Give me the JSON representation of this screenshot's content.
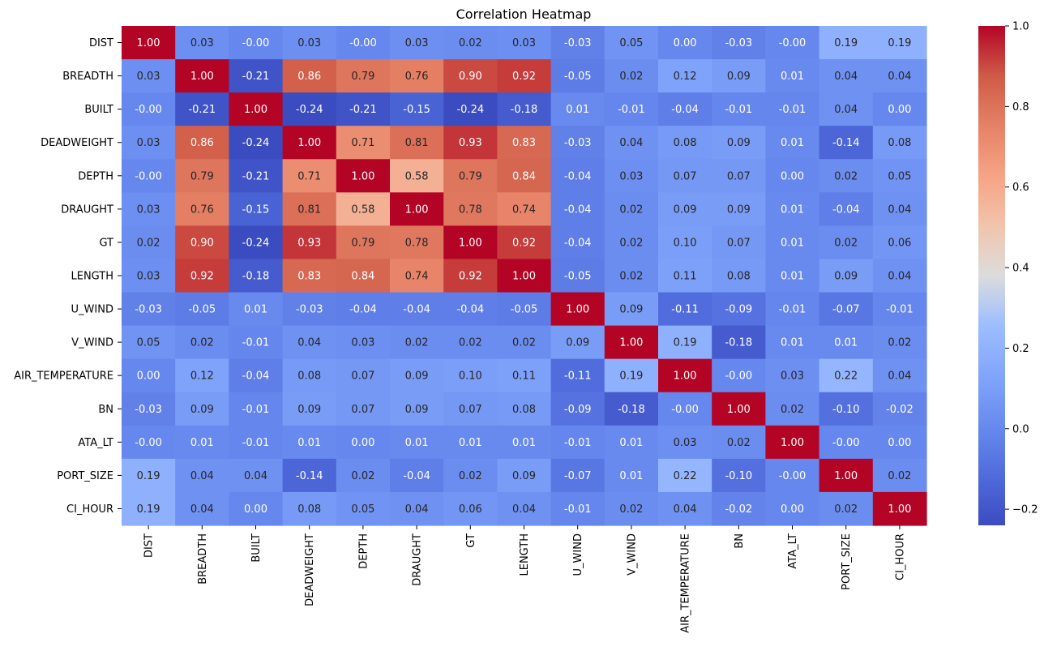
{
  "chart_data": {
    "type": "heatmap",
    "title": "Correlation Heatmap",
    "xlabel": "",
    "ylabel": "",
    "colormap": "coolwarm",
    "colormap_stops": [
      "#3b4cc0",
      "#dddcdc",
      "#b40426"
    ],
    "value_range": [
      -0.24,
      1.0
    ],
    "annotation_format": "0.00",
    "x_labels": [
      "DIST",
      "BREADTH",
      "BUILT",
      "DEADWEIGHT",
      "DEPTH",
      "DRAUGHT",
      "GT",
      "LENGTH",
      "U_WIND",
      "V_WIND",
      "AIR_TEMPERATURE",
      "BN",
      "ATA_LT",
      "PORT_SIZE",
      "CI_HOUR"
    ],
    "y_labels": [
      "DIST",
      "BREADTH",
      "BUILT",
      "DEADWEIGHT",
      "DEPTH",
      "DRAUGHT",
      "GT",
      "LENGTH",
      "U_WIND",
      "V_WIND",
      "AIR_TEMPERATURE",
      "BN",
      "ATA_LT",
      "PORT_SIZE",
      "CI_HOUR"
    ],
    "values": [
      [
        1.0,
        0.03,
        -0.0,
        0.03,
        -0.0,
        0.03,
        0.02,
        0.03,
        -0.03,
        0.05,
        0.0,
        -0.03,
        -0.0,
        0.19,
        0.19
      ],
      [
        0.03,
        1.0,
        -0.21,
        0.86,
        0.79,
        0.76,
        0.9,
        0.92,
        -0.05,
        0.02,
        0.12,
        0.09,
        0.01,
        0.04,
        0.04
      ],
      [
        -0.0,
        -0.21,
        1.0,
        -0.24,
        -0.21,
        -0.15,
        -0.24,
        -0.18,
        0.01,
        -0.01,
        -0.04,
        -0.01,
        -0.01,
        0.04,
        0.0
      ],
      [
        0.03,
        0.86,
        -0.24,
        1.0,
        0.71,
        0.81,
        0.93,
        0.83,
        -0.03,
        0.04,
        0.08,
        0.09,
        0.01,
        -0.14,
        0.08
      ],
      [
        -0.0,
        0.79,
        -0.21,
        0.71,
        1.0,
        0.58,
        0.79,
        0.84,
        -0.04,
        0.03,
        0.07,
        0.07,
        0.0,
        0.02,
        0.05
      ],
      [
        0.03,
        0.76,
        -0.15,
        0.81,
        0.58,
        1.0,
        0.78,
        0.74,
        -0.04,
        0.02,
        0.09,
        0.09,
        0.01,
        -0.04,
        0.04
      ],
      [
        0.02,
        0.9,
        -0.24,
        0.93,
        0.79,
        0.78,
        1.0,
        0.92,
        -0.04,
        0.02,
        0.1,
        0.07,
        0.01,
        0.02,
        0.06
      ],
      [
        0.03,
        0.92,
        -0.18,
        0.83,
        0.84,
        0.74,
        0.92,
        1.0,
        -0.05,
        0.02,
        0.11,
        0.08,
        0.01,
        0.09,
        0.04
      ],
      [
        -0.03,
        -0.05,
        0.01,
        -0.03,
        -0.04,
        -0.04,
        -0.04,
        -0.05,
        1.0,
        0.09,
        -0.11,
        -0.09,
        -0.01,
        -0.07,
        -0.01
      ],
      [
        0.05,
        0.02,
        -0.01,
        0.04,
        0.03,
        0.02,
        0.02,
        0.02,
        0.09,
        1.0,
        0.19,
        -0.18,
        0.01,
        0.01,
        0.02
      ],
      [
        0.0,
        0.12,
        -0.04,
        0.08,
        0.07,
        0.09,
        0.1,
        0.11,
        -0.11,
        0.19,
        1.0,
        -0.0,
        0.03,
        0.22,
        0.04
      ],
      [
        -0.03,
        0.09,
        -0.01,
        0.09,
        0.07,
        0.09,
        0.07,
        0.08,
        -0.09,
        -0.18,
        -0.0,
        1.0,
        0.02,
        -0.1,
        -0.02
      ],
      [
        -0.0,
        0.01,
        -0.01,
        0.01,
        0.0,
        0.01,
        0.01,
        0.01,
        -0.01,
        0.01,
        0.03,
        0.02,
        1.0,
        -0.0,
        0.0
      ],
      [
        0.19,
        0.04,
        0.04,
        -0.14,
        0.02,
        -0.04,
        0.02,
        0.09,
        -0.07,
        0.01,
        0.22,
        -0.1,
        -0.0,
        1.0,
        0.02
      ],
      [
        0.19,
        0.04,
        0.0,
        0.08,
        0.05,
        0.04,
        0.06,
        0.04,
        -0.01,
        0.02,
        0.04,
        -0.02,
        0.0,
        0.02,
        1.0
      ]
    ],
    "colorbar_ticks": [
      -0.2,
      0.0,
      0.2,
      0.4,
      0.6,
      0.8,
      1.0
    ],
    "colorbar_tick_labels": [
      "−0.2",
      "0.0",
      "0.2",
      "0.4",
      "0.6",
      "0.8",
      "1.0"
    ]
  }
}
